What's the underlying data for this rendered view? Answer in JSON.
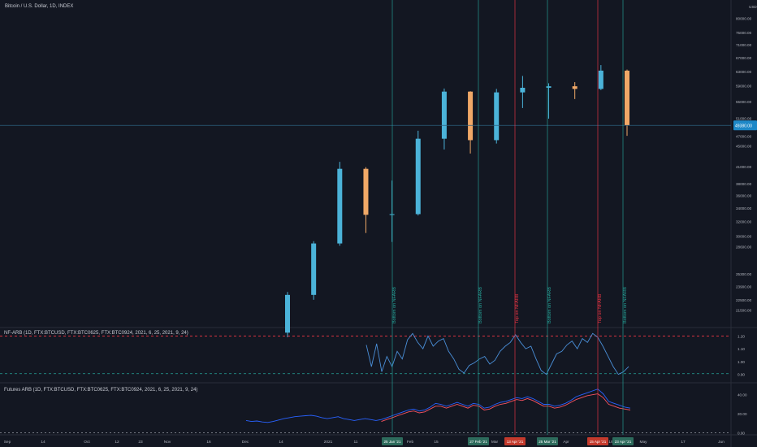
{
  "chart_data": [
    {
      "type": "candlestick",
      "title": "Bitcoin / U.S. Dollar, 1D, INDEX",
      "y_axis_label": "USD",
      "y_scale": "log",
      "ylim": [
        20000,
        85000
      ],
      "y_ticks": [
        "80000.00",
        "75000.00",
        "71000.00",
        "67000.00",
        "63000.00",
        "59000.00",
        "55000.00",
        "51000.00",
        "47000.00",
        "45000.00",
        "41000.00",
        "38000.00",
        "36000.00",
        "34000.00",
        "32000.00",
        "30000.00",
        "28600.00",
        "25300.00",
        "23900.00",
        "22500.00",
        "21500.00"
      ],
      "last_price_label": "49380.00",
      "last_price": 49380,
      "series": [
        {
          "period": "mid Dec 2020",
          "open": 19400,
          "high": 23300,
          "low": 19000,
          "close": 23000
        },
        {
          "period": "late Dec 2020",
          "open": 23000,
          "high": 29300,
          "low": 22500,
          "close": 29000
        },
        {
          "period": "early Jan 2021",
          "open": 29000,
          "high": 41900,
          "low": 28700,
          "close": 40600
        },
        {
          "period": "mid Jan 2021",
          "open": 40600,
          "high": 40900,
          "low": 30400,
          "close": 33000
        },
        {
          "period": "late Jan 2021",
          "open": 33000,
          "high": 38500,
          "low": 29200,
          "close": 33100
        },
        {
          "period": "early Feb 2021",
          "open": 33100,
          "high": 48200,
          "low": 32900,
          "close": 46500
        },
        {
          "period": "mid Feb 2021",
          "open": 46500,
          "high": 58300,
          "low": 44300,
          "close": 57500
        },
        {
          "period": "late Feb 2021",
          "open": 57500,
          "high": 57600,
          "low": 43500,
          "close": 46200
        },
        {
          "period": "early Mar 2021",
          "open": 46200,
          "high": 58200,
          "low": 45500,
          "close": 57300
        },
        {
          "period": "mid Mar 2021",
          "open": 57300,
          "high": 61700,
          "low": 53400,
          "close": 58500
        },
        {
          "period": "late Mar 2021",
          "open": 58500,
          "high": 59700,
          "low": 50900,
          "close": 58900
        },
        {
          "period": "early Apr 2021",
          "open": 58900,
          "high": 60000,
          "low": 55600,
          "close": 58200
        },
        {
          "period": "mid Apr 2021",
          "open": 58200,
          "high": 64800,
          "low": 57900,
          "close": 63200
        },
        {
          "period": "late Apr 2021",
          "open": 63200,
          "high": 63500,
          "low": 47100,
          "close": 49380
        }
      ]
    },
    {
      "type": "line",
      "title": "NF-ARB (1D, FTX:BTCUSD, FTX:BTC0625, FTX:BTC0924, 2021, 6, 25, 2021, 9, 24)",
      "y_ticks": [
        "1.20",
        "1.10",
        "1.00",
        "0.90"
      ],
      "ylim": [
        0.84,
        1.26
      ],
      "reference_lines": [
        1.2,
        0.905
      ],
      "series": [
        {
          "values": [
            1.13,
            0.96,
            1.14,
            0.92,
            1.04,
            0.96,
            1.08,
            1.02,
            1.17,
            1.22,
            1.15,
            1.1,
            1.2,
            1.12,
            1.16,
            1.18,
            1.08,
            1.02,
            0.94,
            0.91,
            0.97,
            0.99,
            1.02,
            1.04,
            0.98,
            1.01,
            1.08,
            1.12,
            1.15,
            1.21,
            1.15,
            1.1,
            1.12,
            1.02,
            0.93,
            0.9,
            0.98,
            1.06,
            1.08,
            1.13,
            1.16,
            1.1,
            1.18,
            1.15,
            1.22,
            1.19,
            1.12,
            1.04,
            0.96,
            0.9,
            0.92,
            0.96
          ]
        }
      ]
    },
    {
      "type": "line",
      "title": "Futures ARB (1D, FTX:BTCUSD, FTX:BTC0625, FTX:BTC0924, 2021, 6, 25, 2021, 9, 24)",
      "y_ticks": [
        "40.00",
        "20.00",
        "0.00"
      ],
      "ylim": [
        -2,
        50
      ],
      "reference_lines": [
        0
      ],
      "series": [
        {
          "color": "#2962ff",
          "values": [
            13,
            12,
            12.5,
            11.5,
            11,
            12,
            13.5,
            15,
            16,
            17,
            17.5,
            18,
            18.5,
            17.5,
            16,
            15,
            16,
            17,
            15,
            14,
            13,
            14,
            15,
            14,
            13,
            14,
            16,
            18,
            20,
            22,
            24,
            25,
            23,
            24,
            27,
            31,
            30,
            28,
            30,
            32,
            30,
            28,
            31,
            30,
            26,
            27,
            30,
            32,
            33,
            35,
            37,
            36,
            38,
            36,
            33,
            30,
            30,
            28,
            29,
            31,
            34,
            38,
            40,
            42,
            44,
            46,
            41,
            33,
            31,
            29,
            27,
            26
          ]
        },
        {
          "color": "#f7525f",
          "values": [
            null,
            null,
            null,
            null,
            null,
            null,
            null,
            null,
            null,
            null,
            null,
            null,
            null,
            null,
            null,
            null,
            null,
            null,
            null,
            null,
            null,
            null,
            null,
            null,
            null,
            12,
            14,
            16,
            18,
            20,
            22,
            23,
            21,
            22,
            25,
            28,
            28,
            26,
            28,
            30,
            28,
            26,
            29,
            28,
            24,
            25,
            28,
            30,
            31,
            33,
            35,
            34,
            36,
            34,
            31,
            28,
            28,
            26,
            27,
            29,
            32,
            35,
            37,
            39,
            40,
            41,
            37,
            30,
            28,
            26,
            25,
            24
          ]
        }
      ]
    }
  ],
  "x_axis": {
    "ticks": [
      "Sep",
      "14",
      "Oct",
      "12",
      "23",
      "Nov",
      "16",
      "Dec",
      "14",
      "2021",
      "11",
      "Feb",
      "15",
      "Mar",
      "15",
      "Apr",
      "19",
      "May",
      "17",
      "Jun"
    ],
    "highlighted": [
      "25 Jan '21",
      "27 Feb '21",
      "13 Apr '21",
      "25 Mar '21",
      "15 Apr '21",
      "23 Apr '21"
    ]
  },
  "annotations": [
    {
      "text": "Bottom on NFARB",
      "kind": "bottom",
      "date": "25 Jan '21",
      "color": "#26a69a"
    },
    {
      "text": "Bottom on NFARB",
      "kind": "bottom",
      "date": "27 Feb '21",
      "color": "#26a69a"
    },
    {
      "text": "Top on NFARB",
      "kind": "top",
      "date": "13 Apr '21",
      "color": "#f23645"
    },
    {
      "text": "Bottom on NFARB",
      "kind": "bottom",
      "date": "25 Mar '21",
      "color": "#26a69a"
    },
    {
      "text": "Top on NFARB",
      "kind": "top",
      "date": "15 Apr '21",
      "color": "#f23645"
    },
    {
      "text": "Bottom on NFARB",
      "kind": "bottom",
      "date": "23 Apr '21",
      "color": "#26a69a"
    }
  ],
  "colors": {
    "background": "#131722",
    "up": "#4bb3d9",
    "down": "#f0a867",
    "grid": "#2a2e39",
    "bottom_line": "#26a69a",
    "top_line": "#f23645",
    "nfarb_line": "#4a8fd8",
    "crosshair": "#2c5f7e"
  }
}
